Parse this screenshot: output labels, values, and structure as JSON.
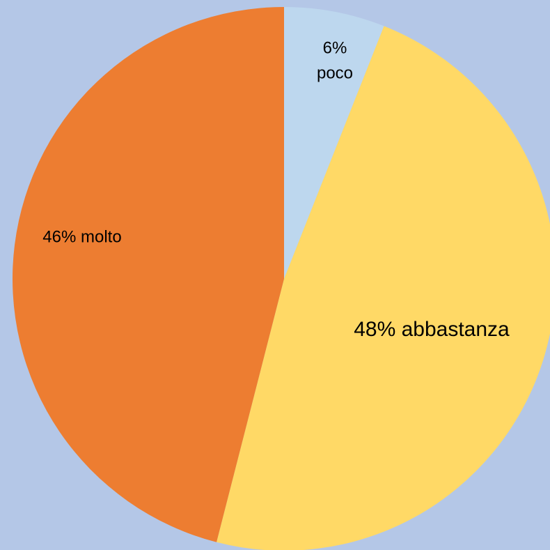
{
  "chart_data": {
    "type": "pie",
    "start_angle_deg": 0,
    "direction": "clockwise",
    "slices": [
      {
        "name": "poco",
        "value": 6,
        "label_lines": [
          "6%",
          "poco"
        ],
        "color": "#bdd7ee"
      },
      {
        "name": "abbastanza",
        "value": 48,
        "label_lines": [
          "48% abbastanza"
        ],
        "color": "#ffd966"
      },
      {
        "name": "molto",
        "value": 46,
        "label_lines": [
          "46% molto"
        ],
        "color": "#ed7d31"
      }
    ],
    "background_color": "#b4c7e7",
    "legend": "none"
  }
}
